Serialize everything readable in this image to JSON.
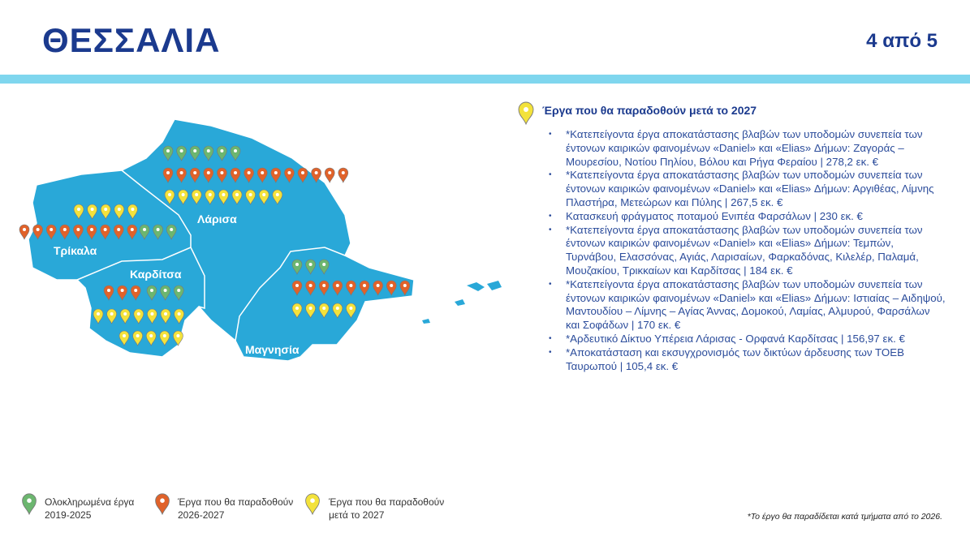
{
  "header": {
    "title": "ΘΕΣΣΑΛΙΑ",
    "page": "4 από 5"
  },
  "map": {
    "regions": [
      "Λάρισα",
      "Τρίκαλα",
      "Καρδίτσα",
      "Μαγνησία"
    ]
  },
  "panel": {
    "heading": "Έργα που θα παραδοθούν μετά το 2027",
    "items": [
      "*Κατεπείγοντα έργα αποκατάστασης βλαβών των υποδομών συνεπεία των έντονων καιρικών φαινομένων «Daniel» και «Elias» Δήμων: Ζαγοράς – Μουρεσίου, Νοτίου Πηλίου, Βόλου και Ρήγα Φεραίου | 278,2 εκ. €",
      "*Κατεπείγοντα έργα αποκατάστασης βλαβών των υποδομών συνεπεία των έντονων καιρικών φαινομένων «Daniel» και «Elias» Δήμων: Αργιθέας, Λίμνης Πλαστήρα, Μετεώρων και Πύλης | 267,5 εκ. €",
      "Κατασκευή φράγματος ποταμού Ενιπέα Φαρσάλων | 230 εκ. €",
      "*Κατεπείγοντα έργα αποκατάστασης βλαβών των υποδομών συνεπεία των έντονων καιρικών φαινομένων «Daniel» και «Elias» Δήμων: Τεμπών, Τυρνάβου, Ελασσόνας, Αγιάς, Λαρισαίων, Φαρκαδόνας, Κιλελέρ, Παλαμά, Μουζακίου, Τρικκαίων και Καρδίτσας | 184 εκ. €",
      "*Κατεπείγοντα έργα αποκατάστασης βλαβών των υποδομών συνεπεία των έντονων καιρικών φαινομένων «Daniel» και «Elias» Δήμων: Ιστιαίας – Αιδηψού, Μαντουδίου – Λίμνης – Αγίας Άννας, Δομοκού, Λαμίας, Αλμυρού, Φαρσάλων και Σοφάδων | 170 εκ. €",
      "*Αρδευτικό Δίκτυο Υπέρεια Λάρισας - Ορφανά Καρδίτσας | 156,97 εκ. €",
      "*Αποκατάσταση και εκσυγχρονισμός των δικτύων άρδευσης των ΤΟΕΒ Ταυρωπού | 105,4 εκ. €"
    ]
  },
  "legend": {
    "items": [
      {
        "lines": [
          "Ολοκληρωμένα έργα",
          "2019-2025"
        ]
      },
      {
        "lines": [
          "Έργα που θα παραδοθούν",
          "2026-2027"
        ]
      },
      {
        "lines": [
          "Έργα που θα παραδοθούν",
          "μετά το 2027"
        ]
      }
    ]
  },
  "footnote": "*Το έργο θα παραδίδεται κατά τμήματα από το 2026."
}
